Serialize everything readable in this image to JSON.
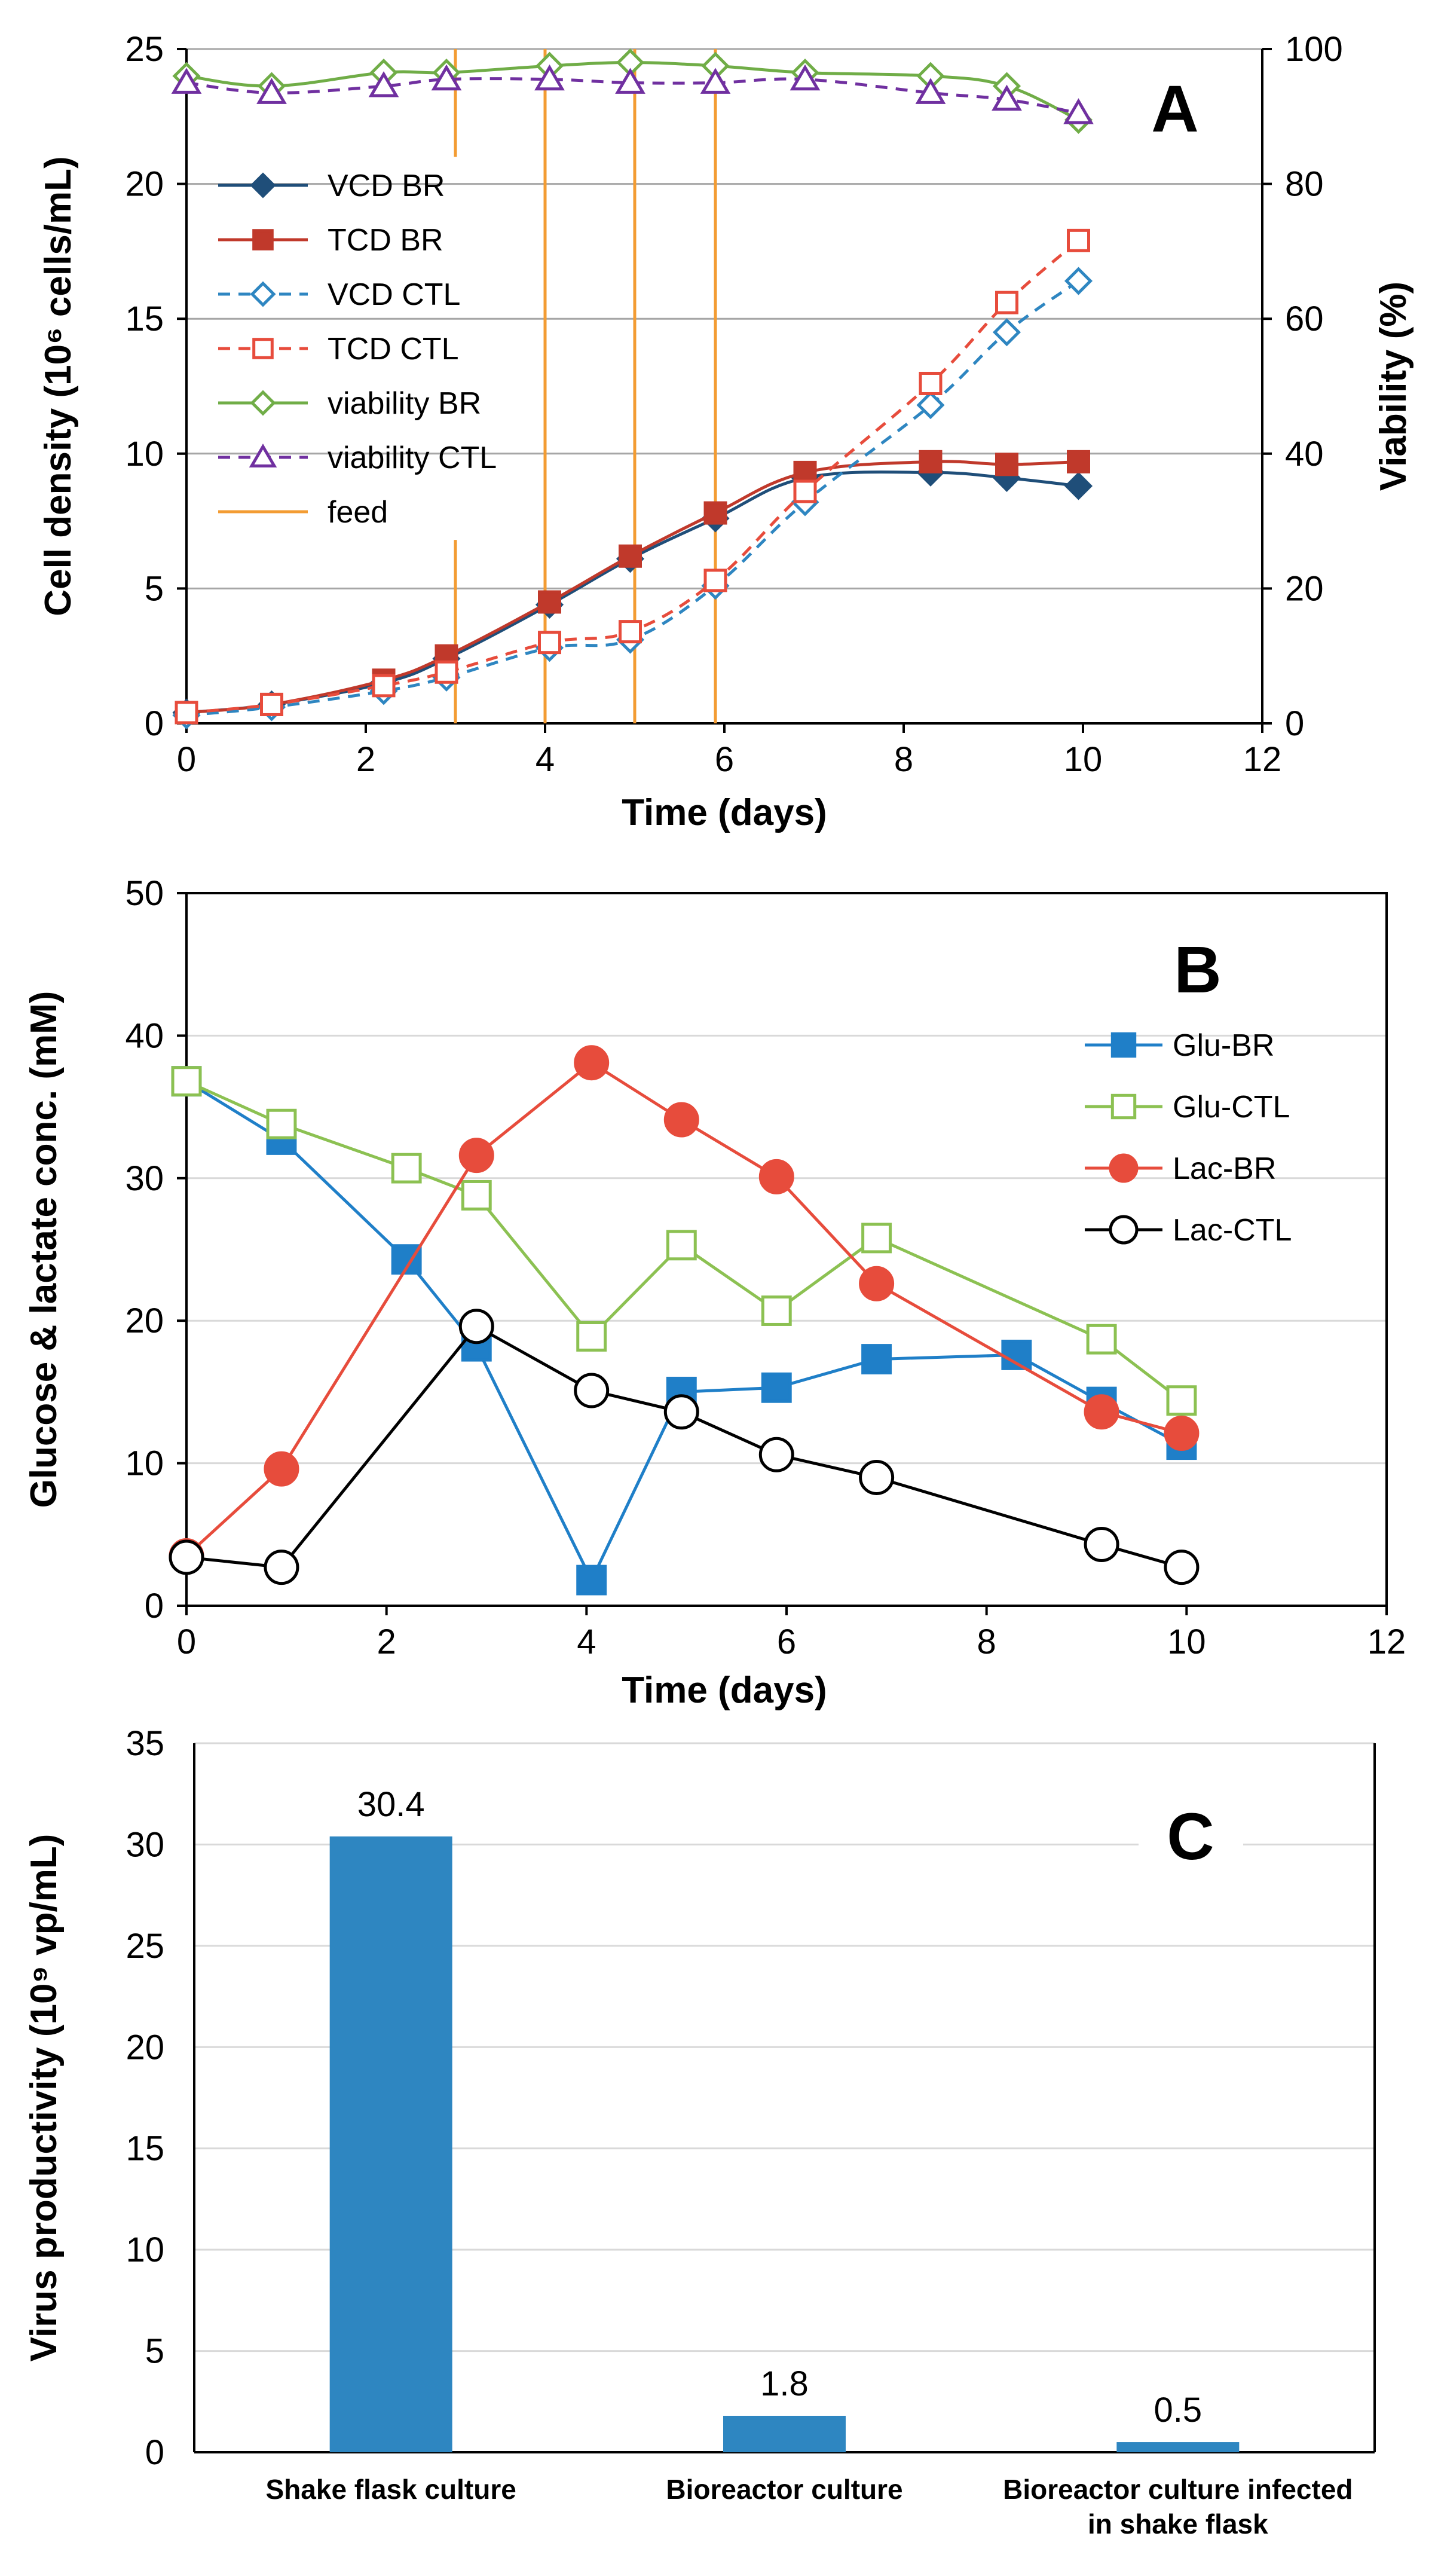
{
  "chart_data": [
    {
      "type": "line",
      "panel": "A",
      "xlabel": "Time (days)",
      "ylabel": "Cell density (10⁶ cells/mL)",
      "y2label": "Viability (%)",
      "xlim": [
        0,
        12
      ],
      "ylim": [
        0,
        25
      ],
      "y2lim": [
        0,
        100
      ],
      "xticks": [
        "0",
        "2",
        "4",
        "6",
        "8",
        "10",
        "12"
      ],
      "yticks": [
        "0",
        "5",
        "10",
        "15",
        "20",
        "25"
      ],
      "y2ticks": [
        "0",
        "20",
        "40",
        "60",
        "80",
        "100"
      ],
      "grid": true,
      "legend": "upper-left",
      "series": [
        {
          "name": "VCD BR",
          "axis": "left",
          "color": "#1f4e79",
          "marker": "diamond",
          "filled": true,
          "dash": false,
          "x": [
            0,
            0.95,
            2.2,
            2.9,
            4.05,
            4.95,
            5.9,
            6.9,
            8.3,
            9.15,
            9.95
          ],
          "y": [
            0.4,
            0.7,
            1.5,
            2.4,
            4.4,
            6.1,
            7.6,
            9.1,
            9.3,
            9.1,
            8.8
          ]
        },
        {
          "name": "TCD BR",
          "axis": "left",
          "color": "#c0392b",
          "marker": "square",
          "filled": true,
          "dash": false,
          "x": [
            0,
            0.95,
            2.2,
            2.9,
            4.05,
            4.95,
            5.9,
            6.9,
            8.3,
            9.15,
            9.95
          ],
          "y": [
            0.4,
            0.7,
            1.6,
            2.5,
            4.5,
            6.2,
            7.8,
            9.3,
            9.7,
            9.6,
            9.7
          ]
        },
        {
          "name": "VCD CTL",
          "axis": "left",
          "color": "#2e86c1",
          "marker": "diamond",
          "filled": false,
          "dash": true,
          "x": [
            0,
            0.95,
            2.2,
            2.9,
            4.05,
            4.95,
            5.9,
            6.9,
            8.3,
            9.15,
            9.95
          ],
          "y": [
            0.3,
            0.6,
            1.2,
            1.7,
            2.8,
            3.1,
            5.1,
            8.2,
            11.8,
            14.5,
            16.4
          ]
        },
        {
          "name": "TCD CTL",
          "axis": "left",
          "color": "#e74c3c",
          "marker": "square",
          "filled": false,
          "dash": true,
          "x": [
            0,
            0.95,
            2.2,
            2.9,
            4.05,
            4.95,
            5.9,
            6.9,
            8.3,
            9.15,
            9.95
          ],
          "y": [
            0.4,
            0.7,
            1.4,
            1.9,
            3.0,
            3.4,
            5.3,
            8.6,
            12.6,
            15.6,
            17.9
          ]
        },
        {
          "name": "viability BR",
          "axis": "right",
          "color": "#70ad47",
          "marker": "diamond",
          "filled": false,
          "dash": false,
          "x": [
            0,
            0.95,
            2.2,
            2.9,
            4.05,
            4.95,
            5.9,
            6.9,
            8.3,
            9.15,
            9.95
          ],
          "y": [
            96,
            94.5,
            96.5,
            96.5,
            97.5,
            98,
            97.5,
            96.5,
            96,
            94.5,
            89.5
          ]
        },
        {
          "name": "viability CTL",
          "axis": "right",
          "color": "#7030a0",
          "marker": "triangle",
          "filled": false,
          "dash": true,
          "x": [
            0,
            0.95,
            2.2,
            2.9,
            4.05,
            4.95,
            5.9,
            6.9,
            8.3,
            9.15,
            9.95
          ],
          "y": [
            95,
            93.5,
            94.5,
            95.5,
            95.5,
            95,
            95,
            95.5,
            93.5,
            92.5,
            90.5
          ]
        }
      ],
      "feed": {
        "name": "feed",
        "color": "#f39c33",
        "days": [
          3,
          4,
          5,
          5.9
        ]
      }
    },
    {
      "type": "line",
      "panel": "B",
      "xlabel": "Time (days)",
      "ylabel": "Glucose & lactate conc. (mM)",
      "xlim": [
        0,
        12
      ],
      "ylim": [
        0,
        50
      ],
      "xticks": [
        "0",
        "2",
        "4",
        "6",
        "8",
        "10",
        "12"
      ],
      "yticks": [
        "0",
        "10",
        "20",
        "30",
        "40",
        "50"
      ],
      "grid": true,
      "legend": "right",
      "series": [
        {
          "name": "Glu-BR",
          "color": "#1f7fc8",
          "marker": "square",
          "filled": true,
          "x": [
            0,
            0.95,
            2.2,
            2.9,
            4.05,
            4.95,
            5.9,
            6.9,
            8.3,
            9.15,
            9.95
          ],
          "y": [
            36.8,
            32.7,
            24.3,
            18.2,
            1.8,
            15.0,
            15.3,
            17.3,
            17.6,
            14.3,
            11.3
          ]
        },
        {
          "name": "Glu-CTL",
          "color": "#8cc152",
          "marker": "square",
          "filled": false,
          "x": [
            0,
            0.95,
            2.2,
            2.9,
            4.05,
            4.95,
            5.9,
            6.9,
            9.15,
            9.95
          ],
          "y": [
            36.8,
            33.8,
            30.7,
            28.8,
            18.9,
            25.3,
            20.7,
            25.8,
            18.7,
            14.4
          ]
        },
        {
          "name": "Lac-BR",
          "color": "#e74c3c",
          "marker": "circle",
          "filled": true,
          "x": [
            0,
            0.95,
            2.9,
            4.05,
            4.95,
            5.9,
            6.9,
            9.15,
            9.95
          ],
          "y": [
            3.5,
            9.6,
            31.6,
            38.1,
            34.1,
            30.1,
            22.6,
            13.6,
            12.1
          ]
        },
        {
          "name": "Lac-CTL",
          "color": "#000000",
          "marker": "circle",
          "filled": false,
          "x": [
            0,
            0.95,
            2.9,
            4.05,
            4.95,
            5.9,
            6.9,
            9.15,
            9.95
          ],
          "y": [
            3.4,
            2.7,
            19.6,
            15.1,
            13.6,
            10.6,
            9.0,
            4.3,
            2.7
          ]
        }
      ]
    },
    {
      "type": "bar",
      "panel": "C",
      "ylabel": "Virus productivity (10⁹ vp/mL)",
      "categories": [
        "Shake flask culture",
        "Bioreactor culture",
        "Bioreactor culture infected in shake flask"
      ],
      "category_lines": [
        [
          "Shake flask culture"
        ],
        [
          "Bioreactor culture"
        ],
        [
          "Bioreactor culture infected",
          "in shake flask"
        ]
      ],
      "values": [
        30.4,
        1.8,
        0.5
      ],
      "value_labels": [
        "30.4",
        "1.8",
        "0.5"
      ],
      "ylim": [
        0,
        35
      ],
      "yticks": [
        "0",
        "5",
        "10",
        "15",
        "20",
        "25",
        "30",
        "35"
      ],
      "grid": true,
      "color": "#2e86c1"
    }
  ]
}
